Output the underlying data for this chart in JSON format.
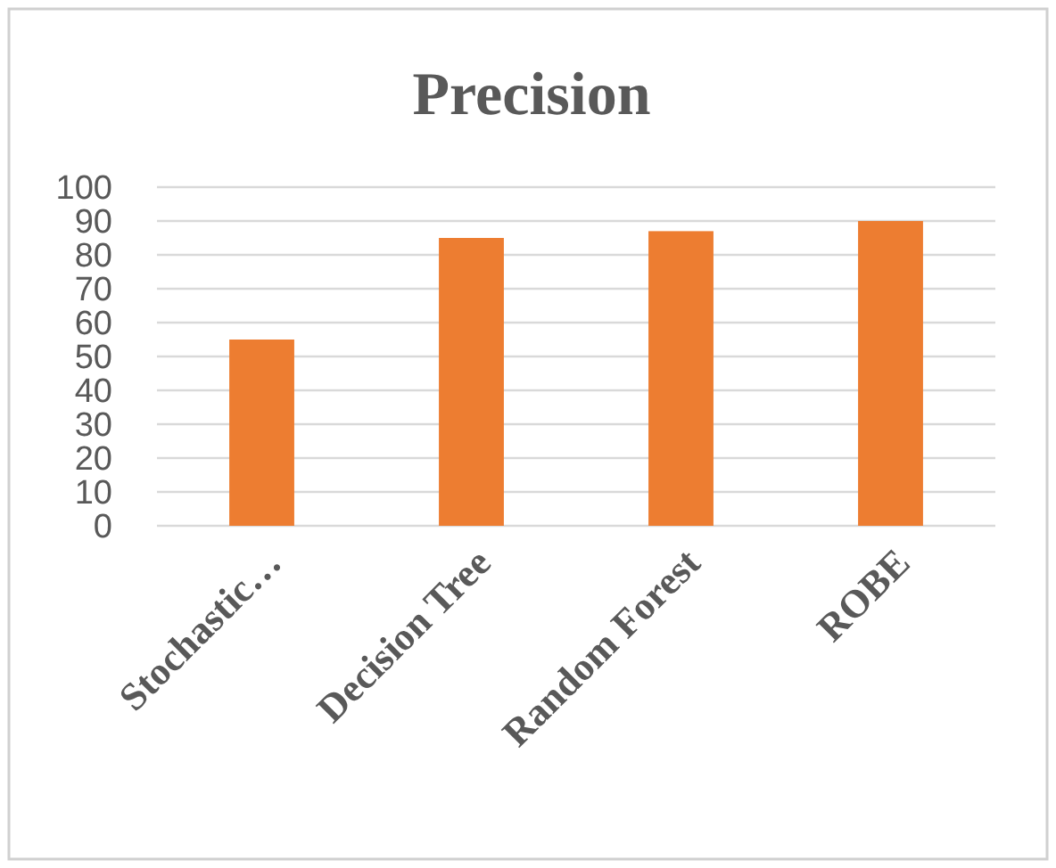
{
  "chart_data": {
    "type": "bar",
    "title": "Precision",
    "categories": [
      "Stochastic…",
      "Decision Tree",
      "Random Forest",
      "ROBE"
    ],
    "values": [
      55,
      85,
      87,
      90
    ],
    "color": "#ed7d31",
    "ylim": [
      0,
      100
    ],
    "yticks": [
      0,
      10,
      20,
      30,
      40,
      50,
      60,
      70,
      80,
      90,
      100
    ],
    "grid": "y"
  }
}
